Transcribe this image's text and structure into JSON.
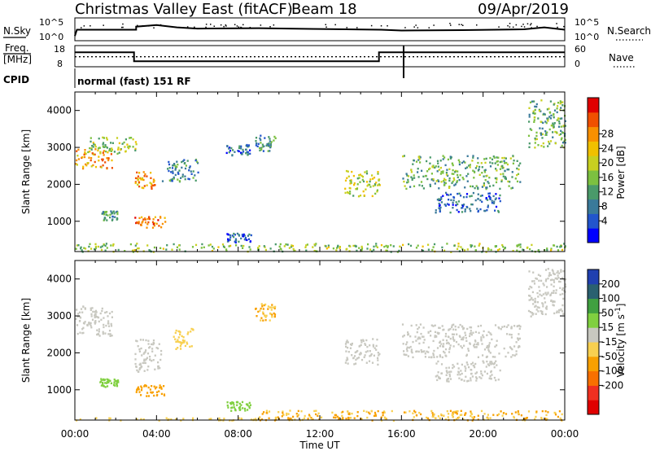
{
  "header": {
    "title": "Christmas Valley East (fitACF)",
    "beam": "Beam 18",
    "date": "09/Apr/2019"
  },
  "strip": {
    "nsky_label": "N.Sky",
    "nsearch_label": "N.Search",
    "freq_label_1": "Freq.",
    "freq_label_2": "[MHz]",
    "nave_label": "Nave",
    "cpid_label": "CPID",
    "cpid_text": "normal (fast) 151 RF",
    "noise_ticks_left": [
      "10^5",
      "10^0"
    ],
    "noise_ticks_right": [
      "10^5",
      "10^0"
    ],
    "freq_ticks": [
      "18",
      "8"
    ],
    "nave_ticks": [
      "60",
      "0"
    ]
  },
  "colorbars": {
    "power": {
      "label": "Power [dB]",
      "ticks": [
        "28",
        "24",
        "20",
        "16",
        "12",
        "8",
        "4"
      ],
      "colors": [
        "#0000ff",
        "#2255cc",
        "#3a7a9a",
        "#4a9a6a",
        "#7cc040",
        "#c8d020",
        "#f0c000",
        "#f89000",
        "#f05000",
        "#e00000"
      ]
    },
    "velocity": {
      "label": "Velocity [m s",
      "label_sup": "-1",
      "label_end": "]",
      "ticks": [
        "200",
        "100",
        "50",
        "15",
        "-15",
        "-50",
        "-100",
        "-200"
      ],
      "colors": [
        "#e00000",
        "#f03020",
        "#f87000",
        "#f8a000",
        "#f8d050",
        "#c8c8c0",
        "#80d040",
        "#40a040",
        "#2a6070",
        "#2040b0"
      ]
    }
  },
  "axes": {
    "ylabel": "Slant Range [km]",
    "xlabel": "Time UT",
    "yticks": [
      "4000",
      "3000",
      "2000",
      "1000"
    ],
    "xticks": [
      "00:00",
      "04:00",
      "08:00",
      "12:00",
      "16:00",
      "20:00",
      "00:00"
    ]
  },
  "chart_data": [
    {
      "type": "line",
      "name": "noise",
      "xlim": [
        0,
        24
      ],
      "ylog_range": [
        0,
        5
      ],
      "nsky": [
        [
          0,
          1.0
        ],
        [
          0.1,
          2.6
        ],
        [
          3,
          2.6
        ],
        [
          3,
          3.4
        ],
        [
          3.5,
          3.6
        ],
        [
          4,
          3.8
        ],
        [
          5,
          3.2
        ],
        [
          6,
          2.9
        ],
        [
          9,
          3.0
        ],
        [
          12,
          2.8
        ],
        [
          15,
          2.6
        ],
        [
          16,
          2.4
        ],
        [
          19,
          2.5
        ],
        [
          22,
          2.7
        ],
        [
          23,
          3.2
        ],
        [
          23.7,
          2.8
        ],
        [
          24,
          2.6
        ]
      ],
      "freq_mhz": [
        [
          0,
          15.2
        ],
        [
          0.1,
          15.2
        ],
        [
          2.9,
          15.2
        ],
        [
          2.9,
          10.2
        ],
        [
          14.9,
          10.2
        ],
        [
          14.9,
          15.2
        ],
        [
          16,
          15.2
        ],
        [
          24,
          15.2
        ]
      ],
      "nave": [
        [
          0,
          28
        ],
        [
          24,
          28
        ]
      ]
    },
    {
      "type": "scatter",
      "name": "power",
      "xlim": [
        0,
        24
      ],
      "ylim": [
        180,
        4500
      ],
      "clusters": [
        {
          "t0": 0.0,
          "t1": 1.8,
          "r0": 2450,
          "r1": 3000,
          "val": 22
        },
        {
          "t0": 0.6,
          "t1": 3.0,
          "r0": 2850,
          "r1": 3300,
          "val": 14
        },
        {
          "t0": 1.2,
          "t1": 2.1,
          "r0": 1050,
          "r1": 1300,
          "val": 10
        },
        {
          "t0": 2.9,
          "t1": 3.9,
          "r0": 1900,
          "r1": 2400,
          "val": 22
        },
        {
          "t0": 2.9,
          "t1": 4.4,
          "r0": 850,
          "r1": 1150,
          "val": 24
        },
        {
          "t0": 4.2,
          "t1": 6.0,
          "r0": 2100,
          "r1": 2700,
          "val": 8
        },
        {
          "t0": 7.4,
          "t1": 8.6,
          "r0": 2800,
          "r1": 3100,
          "val": 6
        },
        {
          "t0": 8.8,
          "t1": 9.8,
          "r0": 2900,
          "r1": 3350,
          "val": 9
        },
        {
          "t0": 7.4,
          "t1": 8.6,
          "r0": 450,
          "r1": 700,
          "val": 6
        },
        {
          "t0": 13.2,
          "t1": 14.9,
          "r0": 1700,
          "r1": 2400,
          "val": 16
        },
        {
          "t0": 16.0,
          "t1": 21.8,
          "r0": 1900,
          "r1": 2800,
          "val": 12
        },
        {
          "t0": 17.6,
          "t1": 20.8,
          "r0": 1250,
          "r1": 1800,
          "val": 6
        },
        {
          "t0": 22.2,
          "t1": 24.0,
          "r0": 3000,
          "r1": 4300,
          "val": 12
        },
        {
          "t0": 0.0,
          "t1": 24.0,
          "r0": 190,
          "r1": 420,
          "val": 14
        }
      ]
    },
    {
      "type": "scatter",
      "name": "velocity",
      "xlim": [
        0,
        24
      ],
      "ylim": [
        180,
        4500
      ],
      "clusters": [
        {
          "t0": 0.0,
          "t1": 1.8,
          "r0": 2450,
          "r1": 3300,
          "val": 0
        },
        {
          "t0": 1.2,
          "t1": 2.1,
          "r0": 1100,
          "r1": 1320,
          "val": 30
        },
        {
          "t0": 2.9,
          "t1": 4.4,
          "r0": 850,
          "r1": 1150,
          "val": -40
        },
        {
          "t0": 2.9,
          "t1": 4.2,
          "r0": 1500,
          "r1": 2400,
          "val": 0
        },
        {
          "t0": 4.8,
          "t1": 5.8,
          "r0": 2100,
          "r1": 2700,
          "val": -20
        },
        {
          "t0": 8.8,
          "t1": 9.8,
          "r0": 2900,
          "r1": 3350,
          "val": -30
        },
        {
          "t0": 7.4,
          "t1": 8.6,
          "r0": 450,
          "r1": 700,
          "val": 40
        },
        {
          "t0": 13.2,
          "t1": 14.9,
          "r0": 1700,
          "r1": 2400,
          "val": 0
        },
        {
          "t0": 16.0,
          "t1": 21.8,
          "r0": 1900,
          "r1": 2800,
          "val": 0
        },
        {
          "t0": 17.6,
          "t1": 20.8,
          "r0": 1250,
          "r1": 1800,
          "val": 0
        },
        {
          "t0": 22.2,
          "t1": 24.0,
          "r0": 3000,
          "r1": 4300,
          "val": 0
        },
        {
          "t0": 9.0,
          "t1": 24.0,
          "r0": 190,
          "r1": 460,
          "val": -30
        },
        {
          "t0": 0.0,
          "t1": 9.0,
          "r0": 190,
          "r1": 260,
          "val": -20
        }
      ]
    }
  ]
}
